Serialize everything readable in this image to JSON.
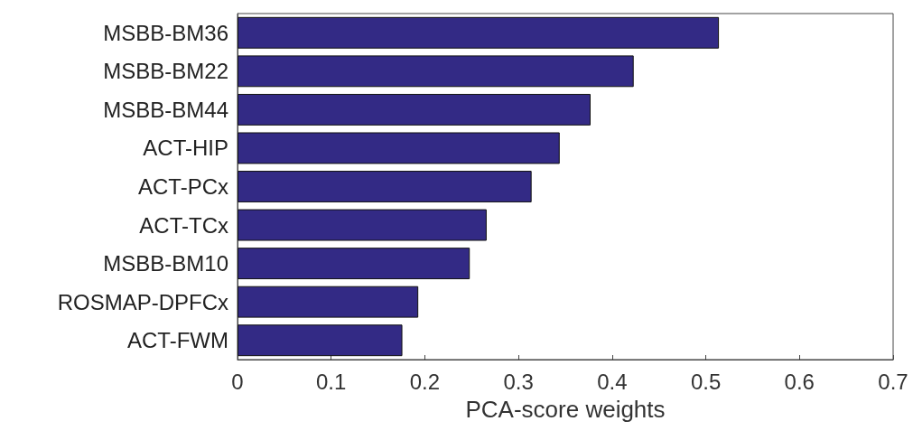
{
  "chart_data": {
    "type": "bar",
    "orientation": "horizontal",
    "xlabel": "PCA-score weights",
    "categories": [
      "MSBB-BM36",
      "MSBB-BM22",
      "MSBB-BM44",
      "ACT-HIP",
      "ACT-PCx",
      "ACT-TCx",
      "MSBB-BM10",
      "ROSMAP-DPFCx",
      "ACT-FWM"
    ],
    "values": [
      0.514,
      0.423,
      0.377,
      0.344,
      0.314,
      0.266,
      0.248,
      0.193,
      0.176
    ],
    "color": "#332a85",
    "xlim": [
      0,
      0.7
    ],
    "xticks": [
      0,
      0.1,
      0.2,
      0.3,
      0.4,
      0.5,
      0.6,
      0.7
    ],
    "grid": false
  }
}
